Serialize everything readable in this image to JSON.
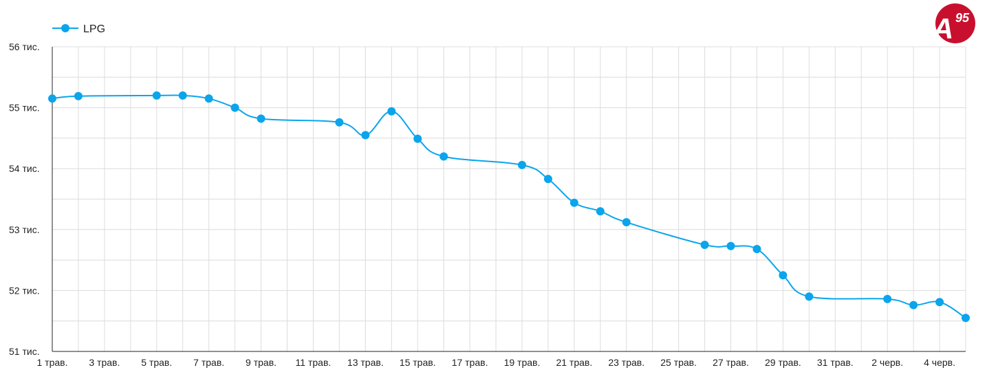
{
  "chart_data": {
    "type": "line",
    "x_labels": [
      "1 трав.",
      "3 трав.",
      "5 трав.",
      "7 трав.",
      "9 трав.",
      "11 трав.",
      "13 трав.",
      "15 трав.",
      "17 трав.",
      "19 трав.",
      "21 трав.",
      "23 трав.",
      "25 трав.",
      "27 трав.",
      "29 трав.",
      "31 трав.",
      "2 черв.",
      "4 черв."
    ],
    "y_ticks": [
      {
        "value": 51000,
        "label": "51 тис."
      },
      {
        "value": 52000,
        "label": "52 тис."
      },
      {
        "value": 53000,
        "label": "53 тис."
      },
      {
        "value": 54000,
        "label": "54 тис."
      },
      {
        "value": 55000,
        "label": "55 тис."
      },
      {
        "value": 56000,
        "label": "56 тис."
      }
    ],
    "ylim": [
      51000,
      56000
    ],
    "x_domain": [
      "1 трав.",
      "5 черв."
    ],
    "grid": true,
    "legend_position": "top-left",
    "series": [
      {
        "name": "LPG",
        "color": "#0aa5ec",
        "points": [
          {
            "date": "1 трав.",
            "value": 55150
          },
          {
            "date": "2 трав.",
            "value": 55190
          },
          {
            "date": "5 трав.",
            "value": 55200
          },
          {
            "date": "6 трав.",
            "value": 55200
          },
          {
            "date": "7 трав.",
            "value": 55150
          },
          {
            "date": "8 трав.",
            "value": 55000
          },
          {
            "date": "9 трав.",
            "value": 54820
          },
          {
            "date": "12 трав.",
            "value": 54760
          },
          {
            "date": "13 трав.",
            "value": 54550
          },
          {
            "date": "14 трав.",
            "value": 54940
          },
          {
            "date": "15 трав.",
            "value": 54490
          },
          {
            "date": "16 трав.",
            "value": 54200
          },
          {
            "date": "19 трав.",
            "value": 54060
          },
          {
            "date": "20 трав.",
            "value": 53830
          },
          {
            "date": "21 трав.",
            "value": 53440
          },
          {
            "date": "22 трав.",
            "value": 53300
          },
          {
            "date": "23 трав.",
            "value": 53120
          },
          {
            "date": "26 трав.",
            "value": 52750
          },
          {
            "date": "27 трав.",
            "value": 52730
          },
          {
            "date": "28 трав.",
            "value": 52680
          },
          {
            "date": "29 трав.",
            "value": 52250
          },
          {
            "date": "30 трав.",
            "value": 51900
          },
          {
            "date": "2 черв.",
            "value": 51860
          },
          {
            "date": "3 черв.",
            "value": 51760
          },
          {
            "date": "4 черв.",
            "value": 51810
          },
          {
            "date": "5 черв.",
            "value": 51550
          }
        ]
      }
    ]
  },
  "logo": {
    "text": "A",
    "superscript": "95",
    "color": "#c8102e"
  }
}
